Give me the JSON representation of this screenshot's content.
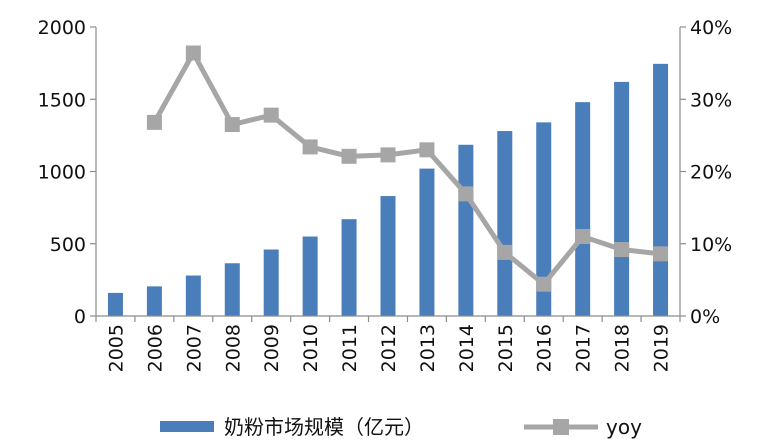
{
  "chart_data": {
    "type": "bar",
    "categories": [
      "2005",
      "2006",
      "2007",
      "2008",
      "2009",
      "2010",
      "2011",
      "2012",
      "2013",
      "2014",
      "2015",
      "2016",
      "2017",
      "2018",
      "2019"
    ],
    "series": [
      {
        "name": "奶粉市场规模（亿元）",
        "type": "bar",
        "axis": "left",
        "color": "#4a7ebb",
        "values": [
          160,
          205,
          280,
          365,
          460,
          550,
          670,
          830,
          1020,
          1185,
          1280,
          1340,
          1480,
          1620,
          1745
        ]
      },
      {
        "name": "yoy",
        "type": "line",
        "axis": "right",
        "color": "#a6a6a6",
        "values": [
          null,
          26.8,
          36.4,
          26.5,
          27.8,
          23.4,
          22.1,
          22.3,
          23.0,
          16.9,
          8.8,
          4.4,
          11.0,
          9.2,
          8.6
        ]
      }
    ],
    "ylim_left": [
      0,
      2000
    ],
    "ylim_right": [
      0,
      40
    ],
    "yticks_left": [
      "0",
      "500",
      "1000",
      "1500",
      "2000"
    ],
    "yticks_right": [
      "0%",
      "10%",
      "20%",
      "30%",
      "40%"
    ],
    "grid": false,
    "legend": "bottom"
  }
}
